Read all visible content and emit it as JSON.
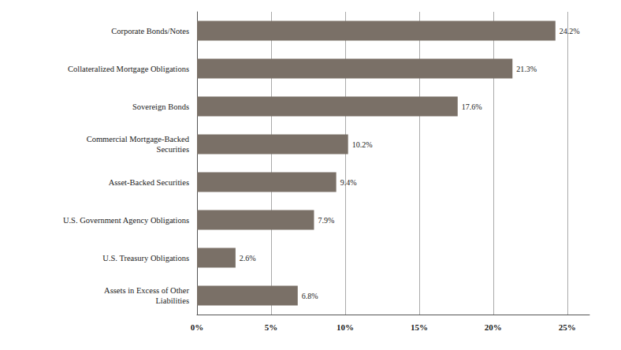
{
  "chart_data": {
    "type": "bar",
    "orientation": "horizontal",
    "categories": [
      "Assets in Excess of Other\nLiabilities",
      "U.S. Treasury Obligations",
      "U.S. Government Agency Obligations",
      "Asset-Backed Securities",
      "Commercial Mortgage-Backed\nSecurities",
      "Sovereign Bonds",
      "Collateralized Mortgage Obligations",
      "Corporate Bonds/Notes"
    ],
    "values": [
      6.8,
      2.6,
      7.9,
      9.4,
      10.2,
      17.6,
      21.3,
      24.2
    ],
    "value_labels": [
      "6.8%",
      "2.6%",
      "7.9%",
      "9.4%",
      "10.2%",
      "17.6%",
      "21.3%",
      "24.2%"
    ],
    "data_labels": true,
    "color": "#7a7067",
    "xlim": [
      0,
      26.5
    ],
    "xticks": [
      {
        "value": 0,
        "label": "0%"
      },
      {
        "value": 5,
        "label": "5%"
      },
      {
        "value": 10,
        "label": "10%"
      },
      {
        "value": 15,
        "label": "15%"
      },
      {
        "value": 20,
        "label": "20%"
      },
      {
        "value": 25,
        "label": "25%"
      }
    ],
    "grid": true
  }
}
